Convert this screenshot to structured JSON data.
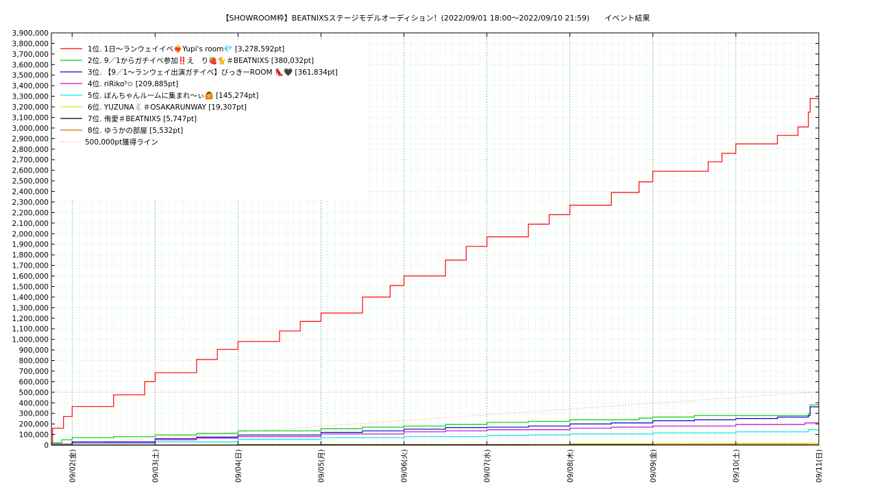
{
  "chart_data": {
    "type": "line",
    "title": "【SHOWROOM枠】BEATNIXSステージモデルオーディション！(2022/09/01 18:00～2022/09/10 21:59)　　イベント結果",
    "xlabel": "",
    "ylabel": "",
    "x_range": [
      "2022-09-01 18:00",
      "2022-09-11 00:00"
    ],
    "ylim": [
      0,
      3900000
    ],
    "y_tick_step": 100000,
    "y_tick_labels": [
      "0",
      "100,000",
      "200,000",
      "300,000",
      "400,000",
      "500,000",
      "600,000",
      "700,000",
      "800,000",
      "900,000",
      "1,000,000",
      "1,100,000",
      "1,200,000",
      "1,300,000",
      "1,400,000",
      "1,500,000",
      "1,600,000",
      "1,700,000",
      "1,800,000",
      "1,900,000",
      "2,000,000",
      "2,100,000",
      "2,200,000",
      "2,300,000",
      "2,400,000",
      "2,500,000",
      "2,600,000",
      "2,700,000",
      "2,800,000",
      "2,900,000",
      "3,000,000",
      "3,100,000",
      "3,200,000",
      "3,300,000",
      "3,400,000",
      "3,500,000",
      "3,600,000",
      "3,700,000",
      "3,800,000",
      "3,900,000"
    ],
    "x_ticks": [
      {
        "x": "2022-09-02",
        "label": "09/02(金)"
      },
      {
        "x": "2022-09-03",
        "label": "09/03(土)"
      },
      {
        "x": "2022-09-04",
        "label": "09/04(日)"
      },
      {
        "x": "2022-09-05",
        "label": "09/05(月)"
      },
      {
        "x": "2022-09-06",
        "label": "09/06(火)"
      },
      {
        "x": "2022-09-07",
        "label": "09/07(水)"
      },
      {
        "x": "2022-09-08",
        "label": "09/08(木)"
      },
      {
        "x": "2022-09-09",
        "label": "09/09(金)"
      },
      {
        "x": "2022-09-10",
        "label": "09/10(土)"
      },
      {
        "x": "2022-09-11",
        "label": "09/11(日)"
      }
    ],
    "grid": true,
    "legend_position": "top-left",
    "series": [
      {
        "name": "1位. 1日～ランウェイイベ❤️‍🔥Yupi's room💎 [3,278,592pt]",
        "color": "#ff0000",
        "step": true,
        "points": [
          [
            "2022-09-01 18:00",
            0
          ],
          [
            "2022-09-01 18:20",
            160000
          ],
          [
            "2022-09-01 21:30",
            270000
          ],
          [
            "2022-09-02 00:00",
            365000
          ],
          [
            "2022-09-02 12:00",
            475000
          ],
          [
            "2022-09-02 21:00",
            600000
          ],
          [
            "2022-09-03 00:00",
            685000
          ],
          [
            "2022-09-03 12:00",
            810000
          ],
          [
            "2022-09-03 18:00",
            905000
          ],
          [
            "2022-09-04 00:00",
            980000
          ],
          [
            "2022-09-04 12:00",
            1080000
          ],
          [
            "2022-09-04 18:00",
            1170000
          ],
          [
            "2022-09-05 00:00",
            1250000
          ],
          [
            "2022-09-05 12:00",
            1400000
          ],
          [
            "2022-09-05 20:00",
            1510000
          ],
          [
            "2022-09-06 00:00",
            1600000
          ],
          [
            "2022-09-06 12:00",
            1750000
          ],
          [
            "2022-09-06 18:00",
            1880000
          ],
          [
            "2022-09-07 00:00",
            1970000
          ],
          [
            "2022-09-07 12:00",
            2090000
          ],
          [
            "2022-09-07 18:00",
            2180000
          ],
          [
            "2022-09-08 00:00",
            2270000
          ],
          [
            "2022-09-08 12:00",
            2390000
          ],
          [
            "2022-09-08 20:00",
            2490000
          ],
          [
            "2022-09-09 00:00",
            2590000
          ],
          [
            "2022-09-09 16:00",
            2680000
          ],
          [
            "2022-09-09 20:00",
            2760000
          ],
          [
            "2022-09-10 00:00",
            2850000
          ],
          [
            "2022-09-10 12:00",
            2930000
          ],
          [
            "2022-09-10 18:00",
            3010000
          ],
          [
            "2022-09-10 21:00",
            3150000
          ],
          [
            "2022-09-10 21:30",
            3278592
          ],
          [
            "2022-09-11 00:00",
            3278592
          ]
        ]
      },
      {
        "name": "2位. 9／1からガチイベ参加‼️え　り🍓🐈＃BEATNIXS [380,032pt]",
        "color": "#00cc00",
        "step": true,
        "points": [
          [
            "2022-09-01 18:00",
            20000
          ],
          [
            "2022-09-01 21:00",
            50000
          ],
          [
            "2022-09-02 00:00",
            70000
          ],
          [
            "2022-09-02 12:00",
            80000
          ],
          [
            "2022-09-03 00:00",
            95000
          ],
          [
            "2022-09-03 12:00",
            110000
          ],
          [
            "2022-09-04 00:00",
            135000
          ],
          [
            "2022-09-05 00:00",
            155000
          ],
          [
            "2022-09-05 12:00",
            170000
          ],
          [
            "2022-09-06 00:00",
            180000
          ],
          [
            "2022-09-06 12:00",
            195000
          ],
          [
            "2022-09-07 00:00",
            215000
          ],
          [
            "2022-09-07 12:00",
            225000
          ],
          [
            "2022-09-08 00:00",
            240000
          ],
          [
            "2022-09-08 20:00",
            255000
          ],
          [
            "2022-09-09 00:00",
            265000
          ],
          [
            "2022-09-09 12:00",
            280000
          ],
          [
            "2022-09-10 00:00",
            280000
          ],
          [
            "2022-09-10 21:00",
            300000
          ],
          [
            "2022-09-10 21:30",
            380032
          ],
          [
            "2022-09-11 00:00",
            380032
          ]
        ]
      },
      {
        "name": "3位. 【9／1～ランウェイ出演ガチイベ】びっきーROOM 👠🖤 [361,834pt]",
        "color": "#0000cc",
        "step": true,
        "points": [
          [
            "2022-09-01 18:00",
            10000
          ],
          [
            "2022-09-02 00:00",
            30000
          ],
          [
            "2022-09-03 00:00",
            60000
          ],
          [
            "2022-09-03 12:00",
            75000
          ],
          [
            "2022-09-04 00:00",
            95000
          ],
          [
            "2022-09-05 00:00",
            120000
          ],
          [
            "2022-09-05 12:00",
            135000
          ],
          [
            "2022-09-06 00:00",
            150000
          ],
          [
            "2022-09-06 12:00",
            165000
          ],
          [
            "2022-09-07 00:00",
            170000
          ],
          [
            "2022-09-07 12:00",
            180000
          ],
          [
            "2022-09-08 00:00",
            200000
          ],
          [
            "2022-09-08 12:00",
            210000
          ],
          [
            "2022-09-09 00:00",
            230000
          ],
          [
            "2022-09-09 12:00",
            240000
          ],
          [
            "2022-09-10 00:00",
            250000
          ],
          [
            "2022-09-10 12:00",
            265000
          ],
          [
            "2022-09-10 21:00",
            280000
          ],
          [
            "2022-09-10 21:30",
            361834
          ],
          [
            "2022-09-11 00:00",
            361834
          ]
        ]
      },
      {
        "name": "4位. riRiko⁵✩ [209,885pt]",
        "color": "#cc00cc",
        "step": true,
        "points": [
          [
            "2022-09-01 18:00",
            10000
          ],
          [
            "2022-09-02 00:00",
            25000
          ],
          [
            "2022-09-03 00:00",
            50000
          ],
          [
            "2022-09-03 12:00",
            65000
          ],
          [
            "2022-09-04 00:00",
            80000
          ],
          [
            "2022-09-05 00:00",
            105000
          ],
          [
            "2022-09-06 00:00",
            125000
          ],
          [
            "2022-09-06 12:00",
            135000
          ],
          [
            "2022-09-07 00:00",
            145000
          ],
          [
            "2022-09-08 00:00",
            160000
          ],
          [
            "2022-09-08 12:00",
            170000
          ],
          [
            "2022-09-09 00:00",
            180000
          ],
          [
            "2022-09-10 00:00",
            195000
          ],
          [
            "2022-09-10 20:00",
            209885
          ],
          [
            "2022-09-11 00:00",
            209885
          ]
        ]
      },
      {
        "name": "5位. ぼんちゃんルームに集まれ〜ぃ🙆 [145,274pt]",
        "color": "#00e5e5",
        "step": true,
        "points": [
          [
            "2022-09-01 18:00",
            5000
          ],
          [
            "2022-09-02 00:00",
            15000
          ],
          [
            "2022-09-03 00:00",
            30000
          ],
          [
            "2022-09-04 00:00",
            55000
          ],
          [
            "2022-09-05 00:00",
            70000
          ],
          [
            "2022-09-06 00:00",
            80000
          ],
          [
            "2022-09-07 00:00",
            90000
          ],
          [
            "2022-09-07 12:00",
            95000
          ],
          [
            "2022-09-08 00:00",
            105000
          ],
          [
            "2022-09-09 00:00",
            115000
          ],
          [
            "2022-09-10 00:00",
            125000
          ],
          [
            "2022-09-10 21:00",
            145274
          ],
          [
            "2022-09-11 00:00",
            145274
          ]
        ]
      },
      {
        "name": "6位. YUZUNA🐇＃OSAKARUNWAY [19,307pt]",
        "color": "#e5e500",
        "step": true,
        "points": [
          [
            "2022-09-01 18:00",
            0
          ],
          [
            "2022-09-05 00:00",
            5000
          ],
          [
            "2022-09-08 00:00",
            12000
          ],
          [
            "2022-09-10 00:00",
            17000
          ],
          [
            "2022-09-10 21:00",
            19307
          ],
          [
            "2022-09-11 00:00",
            19307
          ]
        ]
      },
      {
        "name": "7位. 侑愛＃BEATNIXS [5,747pt]",
        "color": "#000000",
        "step": true,
        "points": [
          [
            "2022-09-01 18:00",
            0
          ],
          [
            "2022-09-04 00:00",
            3000
          ],
          [
            "2022-09-08 00:00",
            5000
          ],
          [
            "2022-09-10 21:00",
            5747
          ],
          [
            "2022-09-11 00:00",
            5747
          ]
        ]
      },
      {
        "name": "8位. ゆうかの部屋 [5,532pt]",
        "color": "#e56600",
        "step": true,
        "points": [
          [
            "2022-09-01 18:00",
            0
          ],
          [
            "2022-09-07 12:00",
            1000
          ],
          [
            "2022-09-09 00:00",
            4000
          ],
          [
            "2022-09-10 21:00",
            5532
          ],
          [
            "2022-09-11 00:00",
            5532
          ]
        ]
      },
      {
        "name": "500,000pt獲得ライン",
        "color": "#ff8080",
        "dotted": true,
        "step": false,
        "points": [
          [
            "2022-09-01 18:00",
            0
          ],
          [
            "2022-09-10 21:59",
            500000
          ]
        ]
      }
    ],
    "reference_lines": [
      {
        "y": 500000,
        "color": "#ff8080",
        "dotted": true
      }
    ]
  }
}
